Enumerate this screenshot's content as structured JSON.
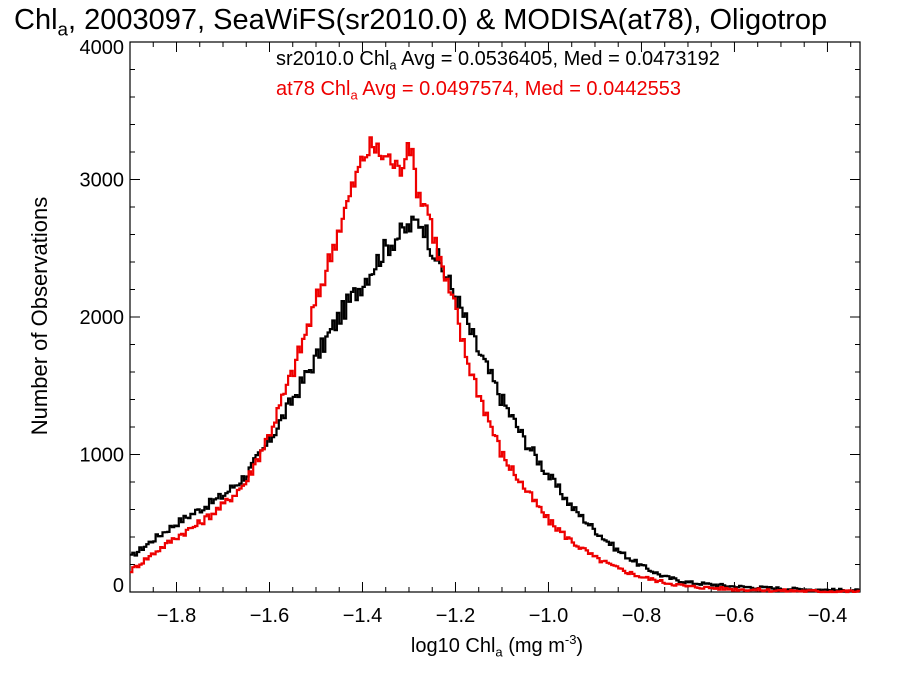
{
  "chart_data": {
    "type": "line",
    "title_parts": {
      "pre": "Chl",
      "sub": "a",
      "post": ", 2003097, SeaWiFS(sr2010.0) & MODISA(at78), Oligotrop"
    },
    "xlabel_parts": {
      "pre": "log10 Chl",
      "sub": "a",
      "mid": " (mg m",
      "sup": "-3",
      "post": ")"
    },
    "ylabel": "Number of Observations",
    "xlim": [
      -1.9,
      -0.33
    ],
    "ylim": [
      0,
      4000
    ],
    "x_ticks": [
      -1.8,
      -1.6,
      -1.4,
      -1.2,
      -1.0,
      -0.8,
      -0.6,
      -0.4
    ],
    "x_tick_labels": [
      "−1.8",
      "−1.6",
      "−1.4",
      "−1.2",
      "−1.0",
      "−0.8",
      "−0.6",
      "−0.4"
    ],
    "y_ticks": [
      0,
      1000,
      2000,
      3000,
      4000
    ],
    "y_tick_labels": [
      "0",
      "1000",
      "2000",
      "3000",
      "4000"
    ],
    "grid": false,
    "legend_position": "top-right",
    "series": [
      {
        "name": "sr2010.0",
        "color": "#000000",
        "legend_parts": {
          "pre": "sr2010.0 Chl",
          "sub": "a",
          "post": " Avg = 0.0536405, Med = 0.0473192"
        },
        "x": [
          -1.9,
          -1.85,
          -1.8,
          -1.75,
          -1.7,
          -1.65,
          -1.6,
          -1.55,
          -1.5,
          -1.45,
          -1.4,
          -1.37,
          -1.35,
          -1.32,
          -1.3,
          -1.28,
          -1.27,
          -1.25,
          -1.22,
          -1.2,
          -1.15,
          -1.1,
          -1.05,
          -1.0,
          -0.95,
          -0.9,
          -0.85,
          -0.8,
          -0.75,
          -0.7,
          -0.6,
          -0.5,
          -0.4,
          -0.33
        ],
        "y": [
          250,
          380,
          500,
          600,
          700,
          850,
          1100,
          1400,
          1700,
          2000,
          2250,
          2400,
          2500,
          2600,
          2650,
          2700,
          2680,
          2500,
          2300,
          2150,
          1750,
          1400,
          1100,
          850,
          620,
          450,
          300,
          190,
          110,
          70,
          40,
          25,
          15,
          10
        ]
      },
      {
        "name": "at78",
        "color": "#ee0000",
        "legend_parts": {
          "pre": "at78 Chl",
          "sub": "a",
          "post": " Avg = 0.0497574, Med = 0.0442553"
        },
        "x": [
          -1.9,
          -1.85,
          -1.8,
          -1.75,
          -1.7,
          -1.65,
          -1.6,
          -1.55,
          -1.5,
          -1.45,
          -1.42,
          -1.4,
          -1.38,
          -1.36,
          -1.34,
          -1.32,
          -1.3,
          -1.28,
          -1.26,
          -1.24,
          -1.22,
          -1.2,
          -1.18,
          -1.15,
          -1.1,
          -1.05,
          -1.0,
          -0.95,
          -0.9,
          -0.85,
          -0.8,
          -0.75,
          -0.7,
          -0.6,
          -0.5,
          -0.4,
          -0.33
        ],
        "y": [
          150,
          280,
          400,
          500,
          630,
          800,
          1150,
          1600,
          2100,
          2650,
          2950,
          3150,
          3250,
          3180,
          3150,
          3050,
          3300,
          2900,
          2800,
          2500,
          2250,
          2050,
          1750,
          1450,
          1000,
          750,
          520,
          370,
          250,
          170,
          110,
          70,
          40,
          20,
          10,
          5,
          5
        ]
      }
    ]
  }
}
